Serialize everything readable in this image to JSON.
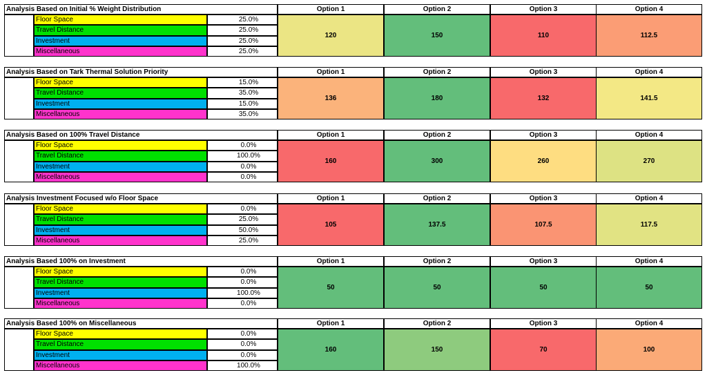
{
  "colors": {
    "floor_space": "#ffff00",
    "travel_distance": "#00e000",
    "investment": "#00b0f0",
    "miscellaneous": "#ff33cc"
  },
  "sections": [
    {
      "title": "Analysis Based on Initial % Weight Distribution",
      "options": [
        "Option 1",
        "Option 2",
        "Option 3",
        "Option 4"
      ],
      "rows": [
        {
          "category": "Floor Space",
          "color_key": "floor_space",
          "weight": "25.0%"
        },
        {
          "category": "Travel Distance",
          "color_key": "travel_distance",
          "weight": "25.0%"
        },
        {
          "category": "Investment",
          "color_key": "investment",
          "weight": "25.0%"
        },
        {
          "category": "Miscellaneous",
          "color_key": "miscellaneous",
          "weight": "25.0%"
        }
      ],
      "scores": [
        "120",
        "150",
        "110",
        "112.5"
      ],
      "score_colors": [
        "#ebe584",
        "#63be7b",
        "#f8696b",
        "#fb9d75"
      ]
    },
    {
      "title": "Analysis Based on Tark Thermal Solution Priority",
      "options": [
        "Option 1",
        "Option 2",
        "Option 3",
        "Option 4"
      ],
      "rows": [
        {
          "category": "Floor Space",
          "color_key": "floor_space",
          "weight": "15.0%"
        },
        {
          "category": "Travel Distance",
          "color_key": "travel_distance",
          "weight": "35.0%"
        },
        {
          "category": "Investment",
          "color_key": "investment",
          "weight": "15.0%"
        },
        {
          "category": "Miscellaneous",
          "color_key": "miscellaneous",
          "weight": "35.0%"
        }
      ],
      "scores": [
        "136",
        "180",
        "132",
        "141.5"
      ],
      "score_colors": [
        "#fbb37b",
        "#63be7b",
        "#f8696b",
        "#f3e885"
      ]
    },
    {
      "title": "Analysis Based on 100% Travel Distance",
      "options": [
        "Option 1",
        "Option 2",
        "Option 3",
        "Option 4"
      ],
      "rows": [
        {
          "category": "Floor Space",
          "color_key": "floor_space",
          "weight": "0.0%"
        },
        {
          "category": "Travel Distance",
          "color_key": "travel_distance",
          "weight": "100.0%"
        },
        {
          "category": "Investment",
          "color_key": "investment",
          "weight": "0.0%"
        },
        {
          "category": "Miscellaneous",
          "color_key": "miscellaneous",
          "weight": "0.0%"
        }
      ],
      "scores": [
        "160",
        "300",
        "260",
        "270"
      ],
      "score_colors": [
        "#f8696b",
        "#63be7b",
        "#fedd81",
        "#dde283"
      ]
    },
    {
      "title": "Analysis Investment Focused w/o Floor Space",
      "options": [
        "Option 1",
        "Option 2",
        "Option 3",
        "Option 4"
      ],
      "rows": [
        {
          "category": "Floor Space",
          "color_key": "floor_space",
          "weight": "0.0%"
        },
        {
          "category": "Travel Distance",
          "color_key": "travel_distance",
          "weight": "25.0%"
        },
        {
          "category": "Investment",
          "color_key": "investment",
          "weight": "50.0%"
        },
        {
          "category": "Miscellaneous",
          "color_key": "miscellaneous",
          "weight": "25.0%"
        }
      ],
      "scores": [
        "105",
        "137.5",
        "107.5",
        "117.5"
      ],
      "score_colors": [
        "#f8696b",
        "#63be7b",
        "#fa9473",
        "#e1e383"
      ]
    },
    {
      "title": "Analysis Based 100% on Investment",
      "options": [
        "Option 1",
        "Option 2",
        "Option 3",
        "Option 4"
      ],
      "rows": [
        {
          "category": "Floor Space",
          "color_key": "floor_space",
          "weight": "0.0%"
        },
        {
          "category": "Travel Distance",
          "color_key": "travel_distance",
          "weight": "0.0%"
        },
        {
          "category": "Investment",
          "color_key": "investment",
          "weight": "100.0%"
        },
        {
          "category": "Miscellaneous",
          "color_key": "miscellaneous",
          "weight": "0.0%"
        }
      ],
      "scores": [
        "50",
        "50",
        "50",
        "50"
      ],
      "score_colors": [
        "#63be7b",
        "#63be7b",
        "#63be7b",
        "#63be7b"
      ]
    },
    {
      "title": "Analysis Based 100% on Miscellaneous",
      "options": [
        "Option 1",
        "Option 2",
        "Option 3",
        "Option 4"
      ],
      "rows": [
        {
          "category": "Floor Space",
          "color_key": "floor_space",
          "weight": "0.0%"
        },
        {
          "category": "Travel Distance",
          "color_key": "travel_distance",
          "weight": "0.0%"
        },
        {
          "category": "Investment",
          "color_key": "investment",
          "weight": "0.0%"
        },
        {
          "category": "Miscellaneous",
          "color_key": "miscellaneous",
          "weight": "100.0%"
        }
      ],
      "scores": [
        "160",
        "150",
        "70",
        "100"
      ],
      "score_colors": [
        "#63be7b",
        "#8ecb7e",
        "#f8696b",
        "#fbaa77"
      ]
    }
  ]
}
